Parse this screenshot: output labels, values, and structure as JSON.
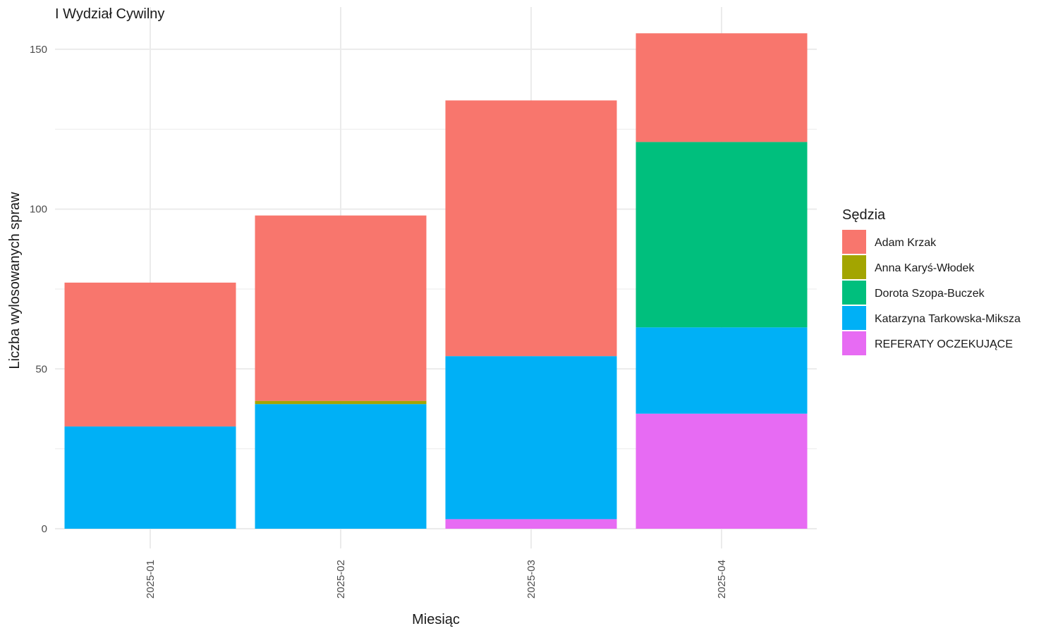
{
  "chart_data": {
    "type": "bar",
    "stacked": true,
    "title": "I Wydział Cywilny",
    "xlabel": "Miesiąc",
    "ylabel": "Liczba wylosowanych spraw",
    "categories": [
      "2025-01",
      "2025-02",
      "2025-03",
      "2025-04"
    ],
    "yticks": [
      0,
      50,
      100,
      150
    ],
    "ylim": [
      0,
      160
    ],
    "grid": true,
    "legend": {
      "title": "Sędzia",
      "position": "right"
    },
    "series": [
      {
        "name": "REFERATY OCZEKUJĄCE",
        "color": "#E76BF3",
        "values": [
          0,
          0,
          3,
          36
        ]
      },
      {
        "name": "Katarzyna Tarkowska-Miksza",
        "color": "#00B0F6",
        "values": [
          32,
          39,
          51,
          27
        ]
      },
      {
        "name": "Dorota Szopa-Buczek",
        "color": "#00BF7D",
        "values": [
          0,
          0,
          0,
          58
        ]
      },
      {
        "name": "Anna Karyś-Włodek",
        "color": "#A3A500",
        "values": [
          0,
          1,
          0,
          0
        ]
      },
      {
        "name": "Adam Krzak",
        "color": "#F8766D",
        "values": [
          45,
          58,
          80,
          34
        ]
      }
    ],
    "legend_order": [
      "Adam Krzak",
      "Anna Karyś-Włodek",
      "Dorota Szopa-Buczek",
      "Katarzyna Tarkowska-Miksza",
      "REFERATY OCZEKUJĄCE"
    ]
  }
}
